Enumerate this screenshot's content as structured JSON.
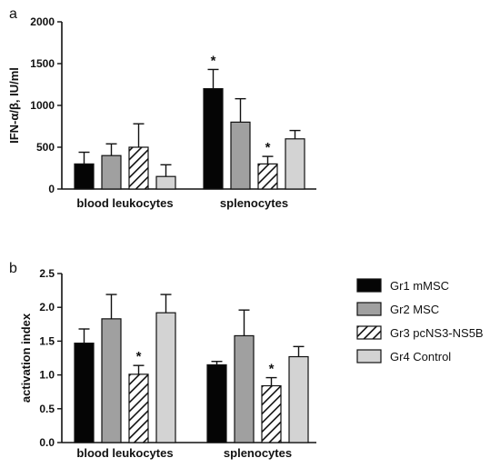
{
  "chart_data": [
    {
      "type": "bar",
      "panel_label": "a",
      "ylabel": "IFN-α/β, IU/ml",
      "ylim": [
        0,
        2000
      ],
      "yticks": [
        "0",
        "500",
        "1000",
        "1500",
        "2000"
      ],
      "categories": [
        "blood leukocytes",
        "splenocytes"
      ],
      "series": [
        {
          "name": "Gr1 mMSC",
          "values": [
            300,
            1200
          ],
          "errors": [
            140,
            230
          ],
          "star": [
            false,
            true
          ]
        },
        {
          "name": "Gr2 MSC",
          "values": [
            400,
            800
          ],
          "errors": [
            140,
            280
          ],
          "star": [
            false,
            false
          ]
        },
        {
          "name": "Gr3 pcNS3-NS5B",
          "values": [
            500,
            300
          ],
          "errors": [
            280,
            90
          ],
          "star": [
            false,
            true
          ]
        },
        {
          "name": "Gr4 Control",
          "values": [
            150,
            600
          ],
          "errors": [
            140,
            100
          ],
          "star": [
            false,
            false
          ]
        }
      ],
      "star_symbol": "*",
      "grid": false
    },
    {
      "type": "bar",
      "panel_label": "b",
      "ylabel": "activation index",
      "ylim": [
        0,
        2.5
      ],
      "yticks": [
        "0.0",
        "0.5",
        "1.0",
        "1.5",
        "2.0",
        "2.5"
      ],
      "categories": [
        "blood leukocytes",
        "splenocytes"
      ],
      "series": [
        {
          "name": "Gr1 mMSC",
          "values": [
            1.47,
            1.15
          ],
          "errors": [
            0.21,
            0.05
          ],
          "star": [
            false,
            false
          ]
        },
        {
          "name": "Gr2 MSC",
          "values": [
            1.83,
            1.58
          ],
          "errors": [
            0.36,
            0.38
          ],
          "star": [
            false,
            false
          ]
        },
        {
          "name": "Gr3 pcNS3-NS5B",
          "values": [
            1.01,
            0.84
          ],
          "errors": [
            0.13,
            0.12
          ],
          "star": [
            true,
            true
          ]
        },
        {
          "name": "Gr4 Control",
          "values": [
            1.92,
            1.27
          ],
          "errors": [
            0.27,
            0.15
          ],
          "star": [
            false,
            false
          ]
        }
      ],
      "star_symbol": "*",
      "grid": false,
      "legend": "right"
    }
  ],
  "colors": {
    "Gr1 mMSC": "#050505",
    "Gr2 MSC": "#a0a0a0",
    "Gr3 pcNS3-NS5B": "hatch",
    "Gr4 Control": "#d3d3d3"
  }
}
